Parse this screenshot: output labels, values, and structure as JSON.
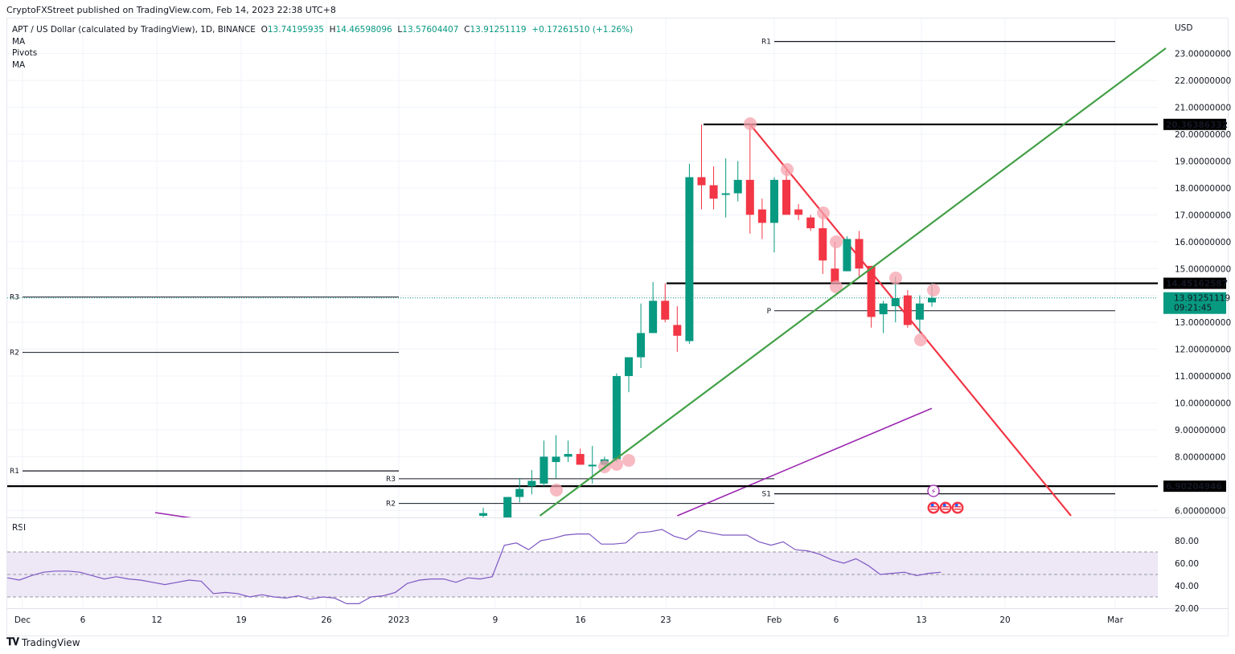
{
  "header": {
    "published": "CryptoFXStreet published on TradingView.com, Feb 14, 2023 22:38 UTC+8"
  },
  "legend": {
    "symbol": "APT / US Dollar (calculated by TradingView), 1D, BINANCE",
    "open_label": "O",
    "open": "13.74195935",
    "high_label": "H",
    "high": "14.46598096",
    "low_label": "L",
    "low": "13.57604407",
    "close_label": "C",
    "close": "13.91251119",
    "change": "+0.17261510 (+1.26%)",
    "indicators": [
      "MA",
      "Pivots",
      "MA"
    ]
  },
  "price_axis": {
    "currency": "USD",
    "ticks": [
      "23.00000000",
      "22.00000000",
      "21.00000000",
      "20.00000000",
      "19.00000000",
      "18.00000000",
      "17.00000000",
      "16.00000000",
      "15.00000000",
      "13.00000000",
      "12.00000000",
      "11.00000000",
      "10.00000000",
      "9.00000000",
      "8.00000000",
      "6.00000000"
    ],
    "tags": {
      "resistance_high": "20.36386332",
      "resistance_mid": "14.45162587",
      "last_price": "13.91251119",
      "countdown": "09:21:45",
      "support": "6.90204946"
    }
  },
  "rsi": {
    "title": "RSI",
    "ticks": [
      "80.00",
      "60.00",
      "40.00",
      "20.00"
    ]
  },
  "time_axis": {
    "labels": [
      "Dec",
      "6",
      "12",
      "19",
      "26",
      "2023",
      "9",
      "16",
      "23",
      "Feb",
      "6",
      "13",
      "20",
      "Mar"
    ]
  },
  "pivots": {
    "left": {
      "R3": "R3",
      "R2": "R2",
      "R1": "R1"
    },
    "mid": {
      "R3": "R3",
      "R2": "R2"
    },
    "right": {
      "R1": "R1",
      "P": "P",
      "S1": "S1"
    }
  },
  "footer": {
    "brand": "TradingView"
  },
  "colors": {
    "up": "#089981",
    "down": "#f23645",
    "trend_up": "#43a047",
    "trend_down": "#f23645",
    "ma": "#9c27b0",
    "rsi_line": "#7e57c2",
    "rsi_band": "#ede7f6",
    "level": "#000000",
    "marker": "#f5a3ad"
  },
  "chart_data": {
    "type": "candlestick",
    "title": "APT / US Dollar (calculated by TradingView), 1D, BINANCE",
    "ylabel": "USD",
    "ylim": [
      5.7,
      23.5
    ],
    "x_start": "2022-12-01",
    "candles": [
      {
        "date": "2023-01-08",
        "o": 5.8,
        "h": 6.1,
        "l": 5.7,
        "c": 5.9
      },
      {
        "date": "2023-01-10",
        "o": 5.7,
        "h": 6.2,
        "l": 5.6,
        "c": 6.5
      },
      {
        "date": "2023-01-11",
        "o": 6.5,
        "h": 7.2,
        "l": 6.3,
        "c": 6.8
      },
      {
        "date": "2023-01-12",
        "o": 6.9,
        "h": 7.5,
        "l": 6.6,
        "c": 7.1
      },
      {
        "date": "2023-01-13",
        "o": 7.0,
        "h": 8.6,
        "l": 6.9,
        "c": 8.0
      },
      {
        "date": "2023-01-14",
        "o": 7.8,
        "h": 8.8,
        "l": 7.2,
        "c": 8.0
      },
      {
        "date": "2023-01-15",
        "o": 8.0,
        "h": 8.6,
        "l": 7.8,
        "c": 8.1
      },
      {
        "date": "2023-01-16",
        "o": 8.1,
        "h": 8.3,
        "l": 7.7,
        "c": 7.7
      },
      {
        "date": "2023-01-17",
        "o": 7.7,
        "h": 8.4,
        "l": 7.0,
        "c": 7.7
      },
      {
        "date": "2023-01-18",
        "o": 7.7,
        "h": 8.0,
        "l": 7.5,
        "c": 7.9
      },
      {
        "date": "2023-01-19",
        "o": 7.9,
        "h": 11.1,
        "l": 7.8,
        "c": 11.0
      },
      {
        "date": "2023-01-20",
        "o": 11.0,
        "h": 11.3,
        "l": 10.4,
        "c": 11.7
      },
      {
        "date": "2023-01-21",
        "o": 11.7,
        "h": 13.7,
        "l": 11.3,
        "c": 12.6
      },
      {
        "date": "2023-01-22",
        "o": 12.6,
        "h": 14.5,
        "l": 12.6,
        "c": 13.8
      },
      {
        "date": "2023-01-23",
        "o": 13.8,
        "h": 14.45,
        "l": 13.0,
        "c": 13.1
      },
      {
        "date": "2023-01-24",
        "o": 12.9,
        "h": 13.6,
        "l": 11.9,
        "c": 12.5
      },
      {
        "date": "2023-01-25",
        "o": 12.3,
        "h": 18.9,
        "l": 12.2,
        "c": 18.4
      },
      {
        "date": "2023-01-26",
        "o": 18.4,
        "h": 20.36,
        "l": 17.2,
        "c": 18.1
      },
      {
        "date": "2023-01-27",
        "o": 18.1,
        "h": 18.8,
        "l": 17.2,
        "c": 17.6
      },
      {
        "date": "2023-01-28",
        "o": 17.8,
        "h": 19.1,
        "l": 16.9,
        "c": 17.8
      },
      {
        "date": "2023-01-29",
        "o": 17.8,
        "h": 19.0,
        "l": 17.5,
        "c": 18.3
      },
      {
        "date": "2023-01-30",
        "o": 18.3,
        "h": 20.3,
        "l": 16.3,
        "c": 17.0
      },
      {
        "date": "2023-01-31",
        "o": 17.2,
        "h": 17.6,
        "l": 16.1,
        "c": 16.7
      },
      {
        "date": "2023-02-01",
        "o": 16.7,
        "h": 18.4,
        "l": 15.6,
        "c": 18.3
      },
      {
        "date": "2023-02-02",
        "o": 18.3,
        "h": 18.7,
        "l": 17.0,
        "c": 17.0
      },
      {
        "date": "2023-02-03",
        "o": 17.2,
        "h": 17.4,
        "l": 16.8,
        "c": 17.0
      },
      {
        "date": "2023-02-04",
        "o": 16.9,
        "h": 17.0,
        "l": 16.4,
        "c": 16.5
      },
      {
        "date": "2023-02-05",
        "o": 16.5,
        "h": 17.0,
        "l": 14.8,
        "c": 15.3
      },
      {
        "date": "2023-02-06",
        "o": 15.0,
        "h": 16.0,
        "l": 14.5,
        "c": 14.5
      },
      {
        "date": "2023-02-07",
        "o": 14.9,
        "h": 16.2,
        "l": 14.9,
        "c": 16.1
      },
      {
        "date": "2023-02-08",
        "o": 16.1,
        "h": 16.4,
        "l": 14.7,
        "c": 15.0
      },
      {
        "date": "2023-02-09",
        "o": 15.1,
        "h": 15.1,
        "l": 12.8,
        "c": 13.2
      },
      {
        "date": "2023-02-10",
        "o": 13.3,
        "h": 13.8,
        "l": 12.6,
        "c": 13.7
      },
      {
        "date": "2023-02-11",
        "o": 13.6,
        "h": 14.7,
        "l": 13.0,
        "c": 13.9
      },
      {
        "date": "2023-02-12",
        "o": 14.0,
        "h": 14.2,
        "l": 12.8,
        "c": 12.9
      },
      {
        "date": "2023-02-13",
        "o": 13.1,
        "h": 14.0,
        "l": 12.6,
        "c": 13.7
      },
      {
        "date": "2023-02-14",
        "o": 13.74,
        "h": 14.47,
        "l": 13.58,
        "c": 13.91
      }
    ],
    "levels": [
      {
        "name": "resistance",
        "value": 20.36386332
      },
      {
        "name": "resistance",
        "value": 14.45162587
      },
      {
        "name": "support",
        "value": 6.90204946
      }
    ],
    "trendlines": [
      {
        "name": "ascending",
        "color": "green",
        "from": {
          "date": "2023-01-13",
          "price": 6.0
        },
        "to": {
          "date": "2023-03-05",
          "price": 23.2
        }
      },
      {
        "name": "descending",
        "color": "red",
        "from": {
          "date": "2023-01-30",
          "price": 20.36
        },
        "to": {
          "date": "2023-02-26",
          "price": 5.8
        }
      }
    ],
    "ma_line": {
      "from": {
        "date": "2023-01-24",
        "price": 5.8
      },
      "to": {
        "date": "2023-02-14",
        "price": 9.8
      }
    },
    "rsi": {
      "ylim": [
        20,
        90
      ],
      "bands": [
        30,
        50,
        70
      ],
      "values": [
        47,
        45,
        49,
        52,
        53,
        53,
        52,
        49,
        46,
        48,
        46,
        45,
        43,
        41,
        43,
        45,
        44,
        33,
        34,
        33,
        30,
        32,
        30,
        29,
        31,
        28,
        30,
        29,
        24,
        24,
        30,
        31,
        34,
        42,
        45,
        46,
        46,
        43,
        47,
        46,
        48,
        76,
        78,
        72,
        80,
        82,
        85,
        86,
        86,
        77,
        77,
        78,
        87,
        88,
        90,
        84,
        81,
        89,
        87,
        85,
        85,
        85,
        79,
        76,
        79,
        72,
        71,
        68,
        63,
        60,
        64,
        58,
        50,
        51,
        52,
        49,
        51,
        52
      ]
    }
  }
}
